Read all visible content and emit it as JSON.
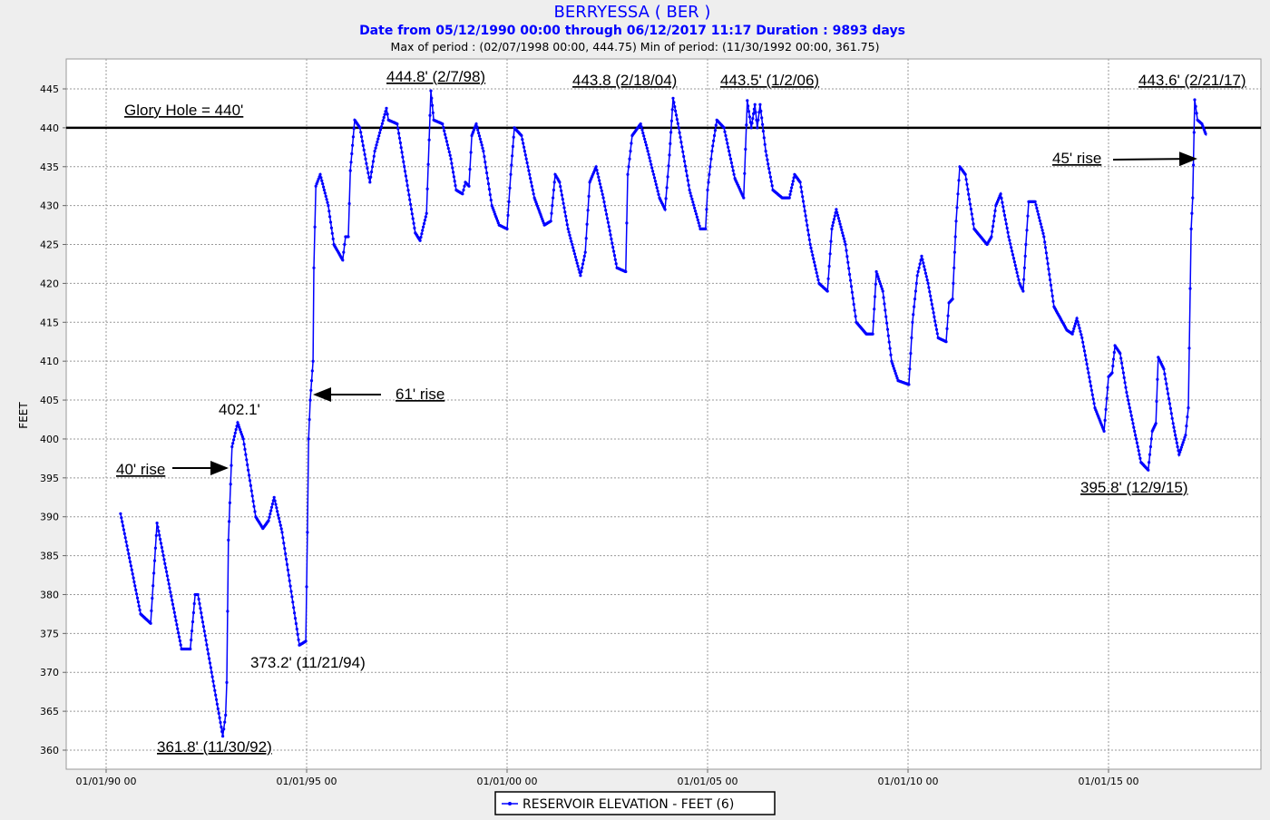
{
  "chart_data": {
    "type": "line",
    "title": "BERRYESSA ( BER )",
    "subtitle": "Date from 05/12/1990 00:00 through 06/12/2017 11:17 Duration : 9893 days",
    "stats": "Max of period : (02/07/1998 00:00, 444.75)  Min of period: (11/30/1992 00:00,  361.75)",
    "ylabel": "FEET",
    "xlabel": "",
    "ylim": [
      356.5,
      449
    ],
    "xlim": [
      1989.0,
      2018.8
    ],
    "yticks": [
      445,
      440,
      435,
      430,
      425,
      420,
      415,
      410,
      405,
      400,
      395,
      390,
      385,
      380,
      375,
      370,
      365,
      360
    ],
    "xticks": [
      {
        "value": 1990,
        "label": "01/01/90 00"
      },
      {
        "value": 1995,
        "label": "01/01/95 00"
      },
      {
        "value": 2000,
        "label": "01/01/00 00"
      },
      {
        "value": 2005,
        "label": "01/01/05 00"
      },
      {
        "value": 2010,
        "label": "01/01/10 00"
      },
      {
        "value": 2015,
        "label": "01/01/15 00"
      }
    ],
    "grid": true,
    "legend": {
      "label": "RESERVOIR ELEVATION - FEET (6)",
      "placement": "bottom-center"
    },
    "colors": {
      "series": "#0000ff",
      "title": "#0000ff",
      "reference": "#000000"
    },
    "reference_line": {
      "value": 440,
      "label": "Glory Hole = 440'"
    },
    "series": [
      {
        "name": "RESERVOIR ELEVATION - FEET (6)",
        "points": [
          [
            1990.36,
            390.4
          ],
          [
            1990.86,
            377.5
          ],
          [
            1991.11,
            376.3
          ],
          [
            1991.27,
            389.2
          ],
          [
            1991.88,
            373.0
          ],
          [
            1992.1,
            373.0
          ],
          [
            1992.22,
            380.0
          ],
          [
            1992.29,
            380.0
          ],
          [
            1992.91,
            361.8
          ],
          [
            1992.98,
            364.5
          ],
          [
            1993.01,
            368.7
          ],
          [
            1993.05,
            387.0
          ],
          [
            1993.14,
            399.0
          ],
          [
            1993.28,
            402.1
          ],
          [
            1993.42,
            400.0
          ],
          [
            1993.73,
            390.0
          ],
          [
            1993.91,
            388.5
          ],
          [
            1994.05,
            389.5
          ],
          [
            1994.19,
            392.5
          ],
          [
            1994.39,
            388.0
          ],
          [
            1994.82,
            373.5
          ],
          [
            1994.98,
            374.0
          ],
          [
            1995.02,
            388.0
          ],
          [
            1995.05,
            400.0
          ],
          [
            1995.09,
            405.0
          ],
          [
            1995.16,
            410.0
          ],
          [
            1995.18,
            422.0
          ],
          [
            1995.23,
            432.5
          ],
          [
            1995.34,
            434.0
          ],
          [
            1995.54,
            430.0
          ],
          [
            1995.68,
            425.0
          ],
          [
            1995.9,
            423.0
          ],
          [
            1995.97,
            426.0
          ],
          [
            1996.04,
            426.0
          ],
          [
            1996.09,
            434.5
          ],
          [
            1996.2,
            441.0
          ],
          [
            1996.33,
            440.0
          ],
          [
            1996.47,
            436.0
          ],
          [
            1996.58,
            433.0
          ],
          [
            1996.7,
            437.0
          ],
          [
            1996.99,
            442.5
          ],
          [
            1997.04,
            441.0
          ],
          [
            1997.26,
            440.5
          ],
          [
            1997.71,
            426.5
          ],
          [
            1997.83,
            425.5
          ],
          [
            1997.99,
            429.0
          ],
          [
            1998.1,
            444.75
          ],
          [
            1998.17,
            441.0
          ],
          [
            1998.39,
            440.5
          ],
          [
            1998.6,
            436.0
          ],
          [
            1998.73,
            432.0
          ],
          [
            1998.89,
            431.5
          ],
          [
            1998.96,
            433.0
          ],
          [
            1999.05,
            432.5
          ],
          [
            1999.12,
            439.0
          ],
          [
            1999.23,
            440.5
          ],
          [
            1999.41,
            437.0
          ],
          [
            1999.62,
            430.0
          ],
          [
            1999.8,
            427.5
          ],
          [
            2000.0,
            427.0
          ],
          [
            2000.09,
            434.0
          ],
          [
            2000.18,
            440.0
          ],
          [
            2000.36,
            439.0
          ],
          [
            2000.68,
            431.0
          ],
          [
            2000.93,
            427.5
          ],
          [
            2001.09,
            428.0
          ],
          [
            2001.2,
            434.0
          ],
          [
            2001.31,
            433.0
          ],
          [
            2001.52,
            427.0
          ],
          [
            2001.83,
            421.0
          ],
          [
            2001.95,
            424.0
          ],
          [
            2002.06,
            433.0
          ],
          [
            2002.22,
            435.0
          ],
          [
            2002.4,
            431.0
          ],
          [
            2002.74,
            422.0
          ],
          [
            2002.96,
            421.5
          ],
          [
            2003.01,
            434.0
          ],
          [
            2003.12,
            439.0
          ],
          [
            2003.33,
            440.5
          ],
          [
            2003.51,
            437.0
          ],
          [
            2003.8,
            431.0
          ],
          [
            2003.94,
            429.5
          ],
          [
            2004.05,
            436.5
          ],
          [
            2004.14,
            443.8
          ],
          [
            2004.28,
            440.0
          ],
          [
            2004.55,
            432.0
          ],
          [
            2004.82,
            427.0
          ],
          [
            2004.95,
            427.0
          ],
          [
            2005.0,
            432.0
          ],
          [
            2005.11,
            437.0
          ],
          [
            2005.23,
            441.0
          ],
          [
            2005.41,
            440.0
          ],
          [
            2005.68,
            433.5
          ],
          [
            2005.9,
            431.0
          ],
          [
            2005.99,
            443.5
          ],
          [
            2006.09,
            440.0
          ],
          [
            2006.18,
            443.0
          ],
          [
            2006.24,
            440.0
          ],
          [
            2006.31,
            443.0
          ],
          [
            2006.45,
            437.0
          ],
          [
            2006.63,
            432.0
          ],
          [
            2006.86,
            431.0
          ],
          [
            2007.04,
            431.0
          ],
          [
            2007.17,
            434.0
          ],
          [
            2007.31,
            433.0
          ],
          [
            2007.56,
            425.0
          ],
          [
            2007.78,
            420.0
          ],
          [
            2007.99,
            419.0
          ],
          [
            2008.1,
            427.0
          ],
          [
            2008.21,
            429.5
          ],
          [
            2008.44,
            425.0
          ],
          [
            2008.71,
            415.0
          ],
          [
            2008.96,
            413.5
          ],
          [
            2009.12,
            413.5
          ],
          [
            2009.21,
            421.5
          ],
          [
            2009.37,
            419.0
          ],
          [
            2009.59,
            410.0
          ],
          [
            2009.75,
            407.5
          ],
          [
            2010.02,
            407.0
          ],
          [
            2010.11,
            415.0
          ],
          [
            2010.23,
            421.0
          ],
          [
            2010.34,
            423.5
          ],
          [
            2010.5,
            420.0
          ],
          [
            2010.75,
            413.0
          ],
          [
            2010.95,
            412.5
          ],
          [
            2011.02,
            417.5
          ],
          [
            2011.11,
            418.0
          ],
          [
            2011.2,
            428.0
          ],
          [
            2011.29,
            435.0
          ],
          [
            2011.43,
            434.0
          ],
          [
            2011.65,
            427.0
          ],
          [
            2011.97,
            425.0
          ],
          [
            2012.08,
            426.0
          ],
          [
            2012.19,
            430.0
          ],
          [
            2012.31,
            431.5
          ],
          [
            2012.51,
            426.0
          ],
          [
            2012.78,
            420.0
          ],
          [
            2012.87,
            419.0
          ],
          [
            2012.94,
            425.0
          ],
          [
            2013.01,
            430.5
          ],
          [
            2013.17,
            430.5
          ],
          [
            2013.39,
            426.0
          ],
          [
            2013.64,
            417.0
          ],
          [
            2013.96,
            414.0
          ],
          [
            2014.1,
            413.5
          ],
          [
            2014.21,
            415.5
          ],
          [
            2014.34,
            413.0
          ],
          [
            2014.66,
            404.0
          ],
          [
            2014.89,
            401.0
          ],
          [
            2015.0,
            408.0
          ],
          [
            2015.09,
            408.5
          ],
          [
            2015.16,
            412.0
          ],
          [
            2015.29,
            411.0
          ],
          [
            2015.45,
            406.0
          ],
          [
            2015.81,
            397.0
          ],
          [
            2015.99,
            396.0
          ],
          [
            2016.09,
            401.0
          ],
          [
            2016.18,
            402.0
          ],
          [
            2016.24,
            410.5
          ],
          [
            2016.38,
            409.0
          ],
          [
            2016.61,
            402.0
          ],
          [
            2016.76,
            398.0
          ],
          [
            2016.92,
            400.5
          ],
          [
            2016.99,
            404.0
          ],
          [
            2017.06,
            427.0
          ],
          [
            2017.1,
            431.0
          ],
          [
            2017.15,
            443.6
          ],
          [
            2017.22,
            441.0
          ],
          [
            2017.33,
            440.5
          ],
          [
            2017.44,
            439.0
          ]
        ]
      }
    ],
    "annotations": {
      "max_1998": "444.8' (2/7/98)",
      "peak_2004": "443.8 (2/18/04)",
      "peak_2006": "443.5' (1/2/06)",
      "peak_2017": "443.6' (2/21/17)",
      "rise_45": "45' rise",
      "rise_61": "61' rise",
      "peak_1993": "402.1'",
      "rise_40": "40' rise",
      "low_2015": "395.8' (12/9/15)",
      "low_1994": "373.2' (11/21/94)",
      "min_1992": "361.8' (11/30/92)"
    }
  }
}
